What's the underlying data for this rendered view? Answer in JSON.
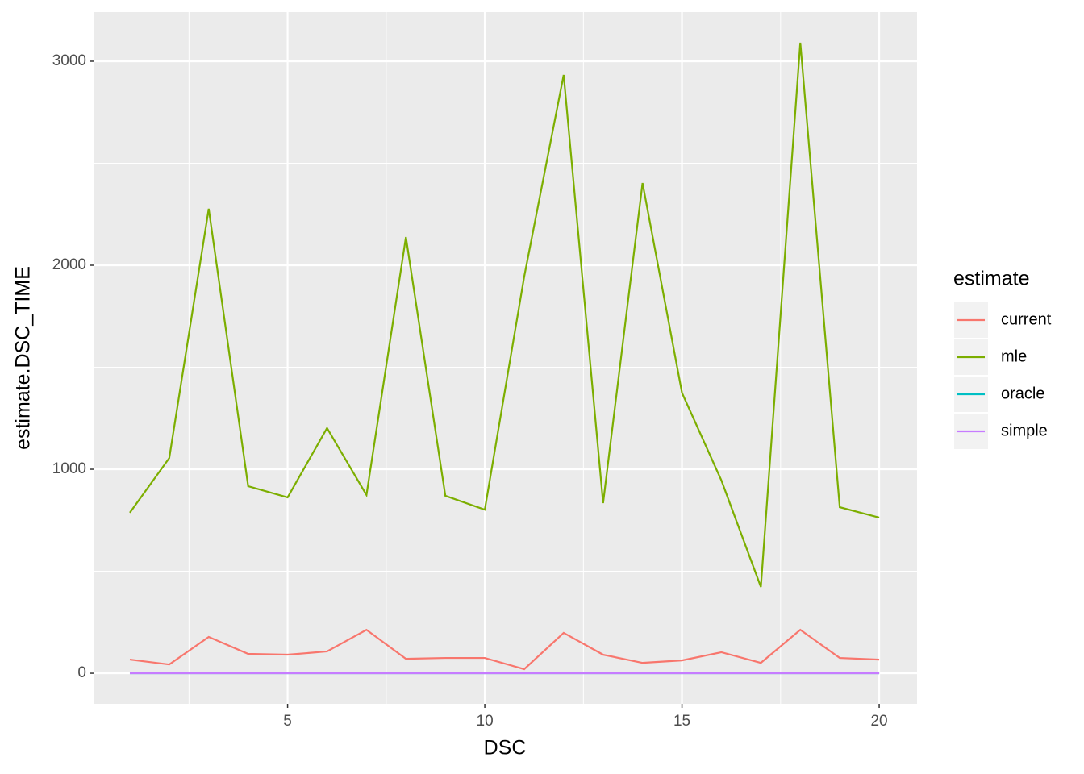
{
  "chart_data": {
    "type": "line",
    "x_label": "DSC",
    "y_label": "estimate.DSC_TIME",
    "legend_title": "estimate",
    "legend_position": "right",
    "x": [
      1,
      2,
      3,
      4,
      5,
      6,
      7,
      8,
      9,
      10,
      11,
      12,
      13,
      14,
      15,
      16,
      17,
      18,
      19,
      20
    ],
    "series": [
      {
        "name": "current",
        "color": "#F8766D",
        "values": [
          67,
          43,
          178,
          95,
          91,
          107,
          213,
          71,
          75,
          75,
          20,
          198,
          91,
          51,
          63,
          103,
          51,
          213,
          75,
          67
        ]
      },
      {
        "name": "mle",
        "color": "#7CAE00",
        "values": [
          787,
          1055,
          2277,
          917,
          862,
          1202,
          874,
          2138,
          870,
          802,
          1945,
          2933,
          834,
          2403,
          1375,
          945,
          423,
          3091,
          814,
          763
        ]
      },
      {
        "name": "oracle",
        "color": "#00BFC4",
        "values": [
          0,
          0,
          0,
          0,
          0,
          0,
          0,
          0,
          0,
          0,
          0,
          0,
          0,
          0,
          0,
          0,
          0,
          0,
          0,
          0
        ]
      },
      {
        "name": "simple",
        "color": "#C77CFF",
        "values": [
          0,
          0,
          0,
          0,
          0,
          0,
          0,
          0,
          0,
          0,
          0,
          0,
          0,
          0,
          0,
          0,
          0,
          0,
          0,
          0
        ]
      }
    ],
    "xlim": [
      0.08,
      20.96
    ],
    "ylim": [
      -150,
      3241
    ],
    "xticks": [
      5,
      10,
      15,
      20
    ],
    "yticks": [
      0,
      1000,
      2000,
      3000
    ],
    "x_minor_ticks": [
      2.5,
      7.5,
      12.5,
      17.5
    ],
    "y_minor_ticks": [
      500,
      1500,
      2500
    ],
    "grid": true,
    "panel_color": "#EBEBEB"
  }
}
